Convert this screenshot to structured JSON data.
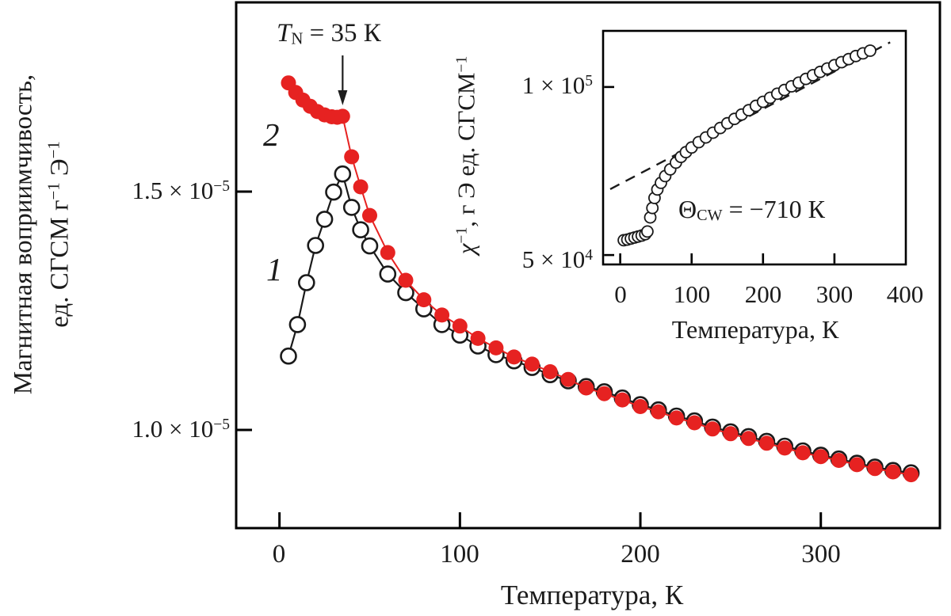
{
  "main": {
    "ylabel_line1": "Магнитная воприимчивость,",
    "ylabel_line2": {
      "p1": "ед. СГСМ г",
      "s1": "−1",
      "p2": " Э",
      "s2": "−1"
    },
    "ytick_top": {
      "m": "1.5 × 10",
      "e": "−5"
    },
    "ytick_bottom": {
      "m": "1.0 × 10",
      "e": "−5"
    },
    "xticks": [
      "0",
      "100",
      "200",
      "300"
    ],
    "xlabel": "Температура, К",
    "tn": {
      "sym": "T",
      "sub": "N",
      "rest": " = 35 К"
    },
    "series1_label": "1",
    "series2_label": "2"
  },
  "inset": {
    "ylabel": {
      "sym": "χ",
      "s1": "−1",
      "mid": ", г Э ед. СГСМ",
      "s2": "−1"
    },
    "ytick_top": {
      "m": "1 × 10",
      "e": "5"
    },
    "ytick_bottom": {
      "m": "5 × 10",
      "e": "4"
    },
    "xticks": [
      "0",
      "100",
      "200",
      "300",
      "400"
    ],
    "xlabel": "Температура, К",
    "cw": {
      "sym": "Θ",
      "sub": "CW",
      "rest": " = −710 К"
    }
  },
  "colors": {
    "series1": "#1a1a1a",
    "series2": "#e62221",
    "fit_line": "#1a1a1a",
    "frame": "#000000",
    "text": "#1b1b1b"
  },
  "chart_data": [
    {
      "id": "main",
      "type": "scatter",
      "title": "",
      "xlabel": "Температура, К",
      "ylabel": "Магнитная воприимчивость, ед. СГСМ г⁻¹ Э⁻¹",
      "y_scale": "1e-5",
      "xlim": [
        -24,
        366
      ],
      "ylim": [
        0.794,
        1.897
      ],
      "xticks": [
        0,
        100,
        200,
        300
      ],
      "yticks": [
        1.0,
        1.5
      ],
      "grid": false,
      "annotations": [
        {
          "label": "T_N = 35 K",
          "x_at": 35
        }
      ],
      "series": [
        {
          "name": "1",
          "marker": "open-circle",
          "color": "#1a1a1a",
          "line_width": 2.2,
          "points": [
            [
              5,
              1.155
            ],
            [
              10,
              1.221
            ],
            [
              15,
              1.309
            ],
            [
              20,
              1.387
            ],
            [
              25,
              1.442
            ],
            [
              30,
              1.499
            ],
            [
              35,
              1.537
            ],
            [
              40,
              1.467
            ],
            [
              45,
              1.42
            ],
            [
              50,
              1.386
            ],
            [
              60,
              1.327
            ],
            [
              70,
              1.288
            ],
            [
              80,
              1.254
            ],
            [
              90,
              1.221
            ],
            [
              100,
              1.199
            ],
            [
              110,
              1.176
            ],
            [
              120,
              1.158
            ],
            [
              130,
              1.145
            ],
            [
              140,
              1.131
            ],
            [
              150,
              1.116
            ],
            [
              160,
              1.103
            ],
            [
              170,
              1.091
            ],
            [
              180,
              1.08
            ],
            [
              190,
              1.067
            ],
            [
              200,
              1.053
            ],
            [
              210,
              1.042
            ],
            [
              220,
              1.029
            ],
            [
              230,
              1.019
            ],
            [
              240,
              1.006
            ],
            [
              250,
              0.996
            ],
            [
              260,
              0.986
            ],
            [
              270,
              0.976
            ],
            [
              280,
              0.966
            ],
            [
              290,
              0.956
            ],
            [
              300,
              0.947
            ],
            [
              310,
              0.939
            ],
            [
              320,
              0.93
            ],
            [
              330,
              0.922
            ],
            [
              340,
              0.915
            ],
            [
              350,
              0.91
            ]
          ]
        },
        {
          "name": "2",
          "marker": "filled-circle",
          "color": "#e62221",
          "line_width": 2,
          "points": [
            [
              5,
              1.728
            ],
            [
              9,
              1.708
            ],
            [
              13,
              1.692
            ],
            [
              17,
              1.679
            ],
            [
              21,
              1.668
            ],
            [
              25,
              1.661
            ],
            [
              29,
              1.657
            ],
            [
              32,
              1.656
            ],
            [
              35,
              1.658
            ],
            [
              40,
              1.573
            ],
            [
              45,
              1.51
            ],
            [
              50,
              1.45
            ],
            [
              60,
              1.372
            ],
            [
              70,
              1.314
            ],
            [
              80,
              1.273
            ],
            [
              90,
              1.241
            ],
            [
              100,
              1.218
            ],
            [
              110,
              1.192
            ],
            [
              120,
              1.172
            ],
            [
              130,
              1.153
            ],
            [
              140,
              1.138
            ],
            [
              150,
              1.122
            ],
            [
              160,
              1.106
            ],
            [
              170,
              1.088
            ],
            [
              180,
              1.076
            ],
            [
              190,
              1.063
            ],
            [
              200,
              1.049
            ],
            [
              210,
              1.038
            ],
            [
              220,
              1.025
            ],
            [
              230,
              1.015
            ],
            [
              240,
              1.002
            ],
            [
              250,
              0.992
            ],
            [
              260,
              0.982
            ],
            [
              270,
              0.972
            ],
            [
              280,
              0.962
            ],
            [
              290,
              0.952
            ],
            [
              300,
              0.944
            ],
            [
              310,
              0.936
            ],
            [
              320,
              0.927
            ],
            [
              330,
              0.919
            ],
            [
              340,
              0.912
            ],
            [
              350,
              0.906
            ]
          ]
        }
      ]
    },
    {
      "id": "inset",
      "type": "scatter",
      "title": "",
      "xlabel": "Температура, К",
      "ylabel": "χ⁻¹, г Э ед. СГСМ⁻¹",
      "y_scale": "1e4",
      "xlim": [
        -24,
        400
      ],
      "ylim": [
        4.72,
        11.67
      ],
      "xticks": [
        0,
        100,
        200,
        300,
        400
      ],
      "yticks": [
        5,
        10
      ],
      "grid": false,
      "annotations": [
        {
          "label": "Θ_CW = −710 K"
        }
      ],
      "fit_line": {
        "style": "dashed",
        "color": "#1a1a1a",
        "points": [
          [
            -14,
            6.96
          ],
          [
            378,
            11.33
          ]
        ]
      },
      "series": [
        {
          "name": "chi-inverse",
          "marker": "open-circle",
          "color": "#1a1a1a",
          "line": false,
          "points": [
            [
              5,
              5.44
            ],
            [
              10,
              5.46
            ],
            [
              15,
              5.49
            ],
            [
              20,
              5.52
            ],
            [
              25,
              5.55
            ],
            [
              30,
              5.58
            ],
            [
              35,
              5.62
            ],
            [
              38,
              5.7
            ],
            [
              42,
              6.12
            ],
            [
              45,
              6.4
            ],
            [
              48,
              6.7
            ],
            [
              52,
              6.95
            ],
            [
              57,
              7.15
            ],
            [
              63,
              7.35
            ],
            [
              70,
              7.55
            ],
            [
              78,
              7.75
            ],
            [
              85,
              7.92
            ],
            [
              92,
              8.06
            ],
            [
              100,
              8.2
            ],
            [
              110,
              8.36
            ],
            [
              120,
              8.5
            ],
            [
              130,
              8.64
            ],
            [
              140,
              8.78
            ],
            [
              150,
              8.92
            ],
            [
              160,
              9.05
            ],
            [
              170,
              9.18
            ],
            [
              180,
              9.31
            ],
            [
              190,
              9.44
            ],
            [
              200,
              9.56
            ],
            [
              210,
              9.68
            ],
            [
              220,
              9.8
            ],
            [
              230,
              9.91
            ],
            [
              240,
              10.02
            ],
            [
              250,
              10.13
            ],
            [
              260,
              10.24
            ],
            [
              270,
              10.35
            ],
            [
              280,
              10.45
            ],
            [
              290,
              10.55
            ],
            [
              300,
              10.65
            ],
            [
              310,
              10.74
            ],
            [
              320,
              10.83
            ],
            [
              330,
              10.92
            ],
            [
              340,
              11.0
            ],
            [
              350,
              11.08
            ]
          ]
        }
      ]
    }
  ]
}
